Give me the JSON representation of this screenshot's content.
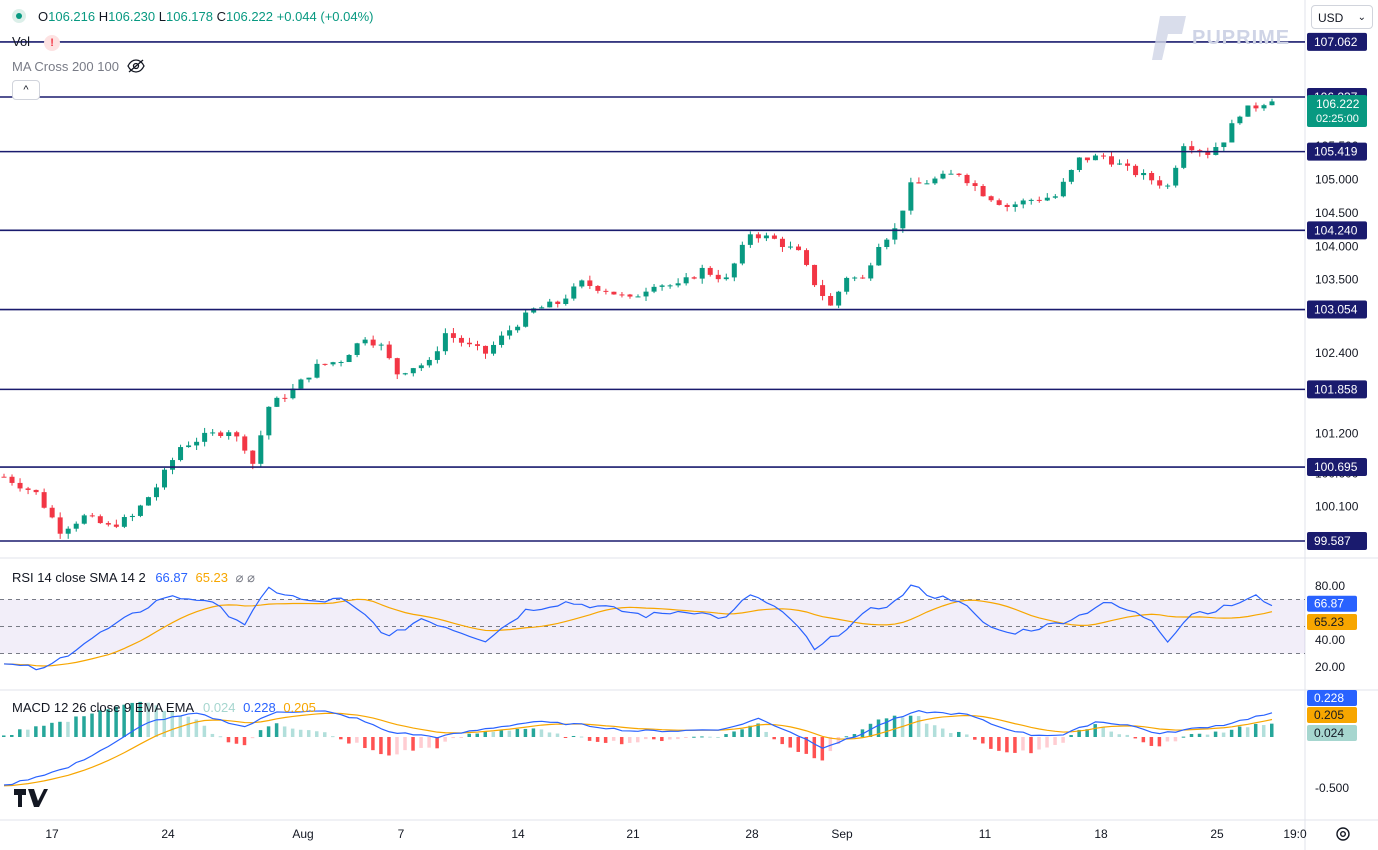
{
  "legend": {
    "o_label": "O",
    "o_value": "106.216",
    "h_label": "H",
    "h_value": "106.230",
    "l_label": "L",
    "l_value": "106.178",
    "c_label": "C",
    "c_value": "106.222",
    "change": "+0.044 (+0.04%)"
  },
  "indicators": {
    "vol_label": "Vol",
    "ma_label": "MA Cross 200 100",
    "rsi_label": "RSI 14 close SMA 14 2",
    "rsi_value": "66.87",
    "rsi_sma_value": "65.23",
    "macd_label": "MACD 12 26 close 9 EMA EMA",
    "macd_hist": "0.024",
    "macd_line": "0.228",
    "macd_signal": "0.205"
  },
  "currency": "USD",
  "logo_text": "PUPRIME",
  "colors": {
    "up": "#089981",
    "down": "#f23645",
    "level": "#1a1b6e",
    "rsi": "#2962ff",
    "rsi_sma": "#f7a600",
    "macd": "#2962ff",
    "signal": "#f7a600"
  },
  "chart_data": {
    "type": "candlestick",
    "price_axis": [
      "105.500",
      "105.000",
      "104.500",
      "104.000",
      "103.500",
      "102.400",
      "101.200",
      "100.600",
      "100.100",
      "99.600"
    ],
    "horizontal_levels": [
      "107.062",
      "106.237",
      "105.419",
      "104.240",
      "103.054",
      "101.858",
      "100.695",
      "99.587"
    ],
    "last_price": "106.222",
    "countdown": "02:25:00",
    "x_labels": [
      "17",
      "24",
      "Aug",
      "7",
      "14",
      "21",
      "28",
      "Sep",
      "11",
      "18",
      "25",
      "19:0"
    ],
    "rsi_axis": [
      "80.00",
      "40.00",
      "20.00"
    ],
    "rsi_latest": 66.87,
    "rsi_sma_latest": 65.23,
    "macd_axis": [
      "-0.500"
    ],
    "macd_latest": {
      "macd": 0.228,
      "signal": 0.205,
      "histogram": 0.024
    },
    "price_path": [
      [
        0,
        100.55
      ],
      [
        4,
        100.3
      ],
      [
        7,
        99.75
      ],
      [
        10,
        99.95
      ],
      [
        13,
        99.8
      ],
      [
        16,
        99.95
      ],
      [
        19,
        100.4
      ],
      [
        22,
        101.0
      ],
      [
        25,
        101.15
      ],
      [
        28,
        101.25
      ],
      [
        30,
        101.0
      ],
      [
        31,
        100.75
      ],
      [
        33,
        101.6
      ],
      [
        36,
        101.85
      ],
      [
        39,
        102.2
      ],
      [
        42,
        102.3
      ],
      [
        45,
        102.65
      ],
      [
        47,
        102.5
      ],
      [
        49,
        102.1
      ],
      [
        51,
        102.2
      ],
      [
        53,
        102.25
      ],
      [
        55,
        102.7
      ],
      [
        58,
        102.5
      ],
      [
        60,
        102.4
      ],
      [
        63,
        102.75
      ],
      [
        66,
        103.05
      ],
      [
        69,
        103.15
      ],
      [
        72,
        103.45
      ],
      [
        75,
        103.35
      ],
      [
        78,
        103.2
      ],
      [
        81,
        103.45
      ],
      [
        84,
        103.4
      ],
      [
        87,
        103.65
      ],
      [
        90,
        103.5
      ],
      [
        93,
        104.2
      ],
      [
        96,
        104.1
      ],
      [
        99,
        103.9
      ],
      [
        101,
        103.45
      ],
      [
        103,
        103.1
      ],
      [
        105,
        103.55
      ],
      [
        107,
        103.5
      ],
      [
        109,
        104.05
      ],
      [
        111,
        104.25
      ],
      [
        113,
        104.9
      ],
      [
        116,
        105.0
      ],
      [
        119,
        105.1
      ],
      [
        122,
        104.8
      ],
      [
        125,
        104.6
      ],
      [
        128,
        104.7
      ],
      [
        131,
        104.75
      ],
      [
        134,
        105.3
      ],
      [
        137,
        105.35
      ],
      [
        140,
        105.15
      ],
      [
        143,
        105.0
      ],
      [
        145,
        104.9
      ],
      [
        147,
        105.55
      ],
      [
        150,
        105.4
      ],
      [
        152,
        105.6
      ],
      [
        154,
        106.0
      ],
      [
        156,
        106.1
      ],
      [
        158,
        106.22
      ]
    ],
    "rsi_path": [
      [
        0,
        22
      ],
      [
        5,
        18
      ],
      [
        10,
        38
      ],
      [
        15,
        55
      ],
      [
        20,
        72
      ],
      [
        25,
        70
      ],
      [
        30,
        52
      ],
      [
        33,
        78
      ],
      [
        38,
        68
      ],
      [
        42,
        70
      ],
      [
        45,
        58
      ],
      [
        48,
        42
      ],
      [
        52,
        56
      ],
      [
        56,
        48
      ],
      [
        60,
        40
      ],
      [
        65,
        62
      ],
      [
        70,
        68
      ],
      [
        75,
        64
      ],
      [
        80,
        58
      ],
      [
        85,
        62
      ],
      [
        90,
        56
      ],
      [
        93,
        74
      ],
      [
        96,
        64
      ],
      [
        99,
        50
      ],
      [
        101,
        32
      ],
      [
        104,
        45
      ],
      [
        108,
        62
      ],
      [
        111,
        68
      ],
      [
        113,
        80
      ],
      [
        116,
        72
      ],
      [
        119,
        70
      ],
      [
        122,
        52
      ],
      [
        125,
        45
      ],
      [
        128,
        48
      ],
      [
        131,
        52
      ],
      [
        134,
        58
      ],
      [
        137,
        68
      ],
      [
        140,
        62
      ],
      [
        143,
        55
      ],
      [
        145,
        40
      ],
      [
        148,
        60
      ],
      [
        151,
        62
      ],
      [
        154,
        68
      ],
      [
        156,
        72
      ],
      [
        158,
        66.87
      ]
    ],
    "macd_path": [
      [
        0,
        -0.48
      ],
      [
        8,
        -0.3
      ],
      [
        14,
        -0.05
      ],
      [
        18,
        0.15
      ],
      [
        24,
        0.23
      ],
      [
        30,
        0.1
      ],
      [
        34,
        0.25
      ],
      [
        40,
        0.25
      ],
      [
        44,
        0.18
      ],
      [
        48,
        0.05
      ],
      [
        54,
        0.0
      ],
      [
        60,
        0.08
      ],
      [
        66,
        0.15
      ],
      [
        72,
        0.12
      ],
      [
        78,
        0.06
      ],
      [
        84,
        0.06
      ],
      [
        90,
        0.08
      ],
      [
        94,
        0.18
      ],
      [
        98,
        0.05
      ],
      [
        102,
        -0.1
      ],
      [
        106,
        0.0
      ],
      [
        110,
        0.15
      ],
      [
        114,
        0.25
      ],
      [
        120,
        0.22
      ],
      [
        124,
        0.1
      ],
      [
        128,
        0.02
      ],
      [
        132,
        0.02
      ],
      [
        136,
        0.15
      ],
      [
        140,
        0.12
      ],
      [
        144,
        0.03
      ],
      [
        148,
        0.08
      ],
      [
        152,
        0.12
      ],
      [
        156,
        0.2
      ],
      [
        158,
        0.228
      ]
    ]
  }
}
